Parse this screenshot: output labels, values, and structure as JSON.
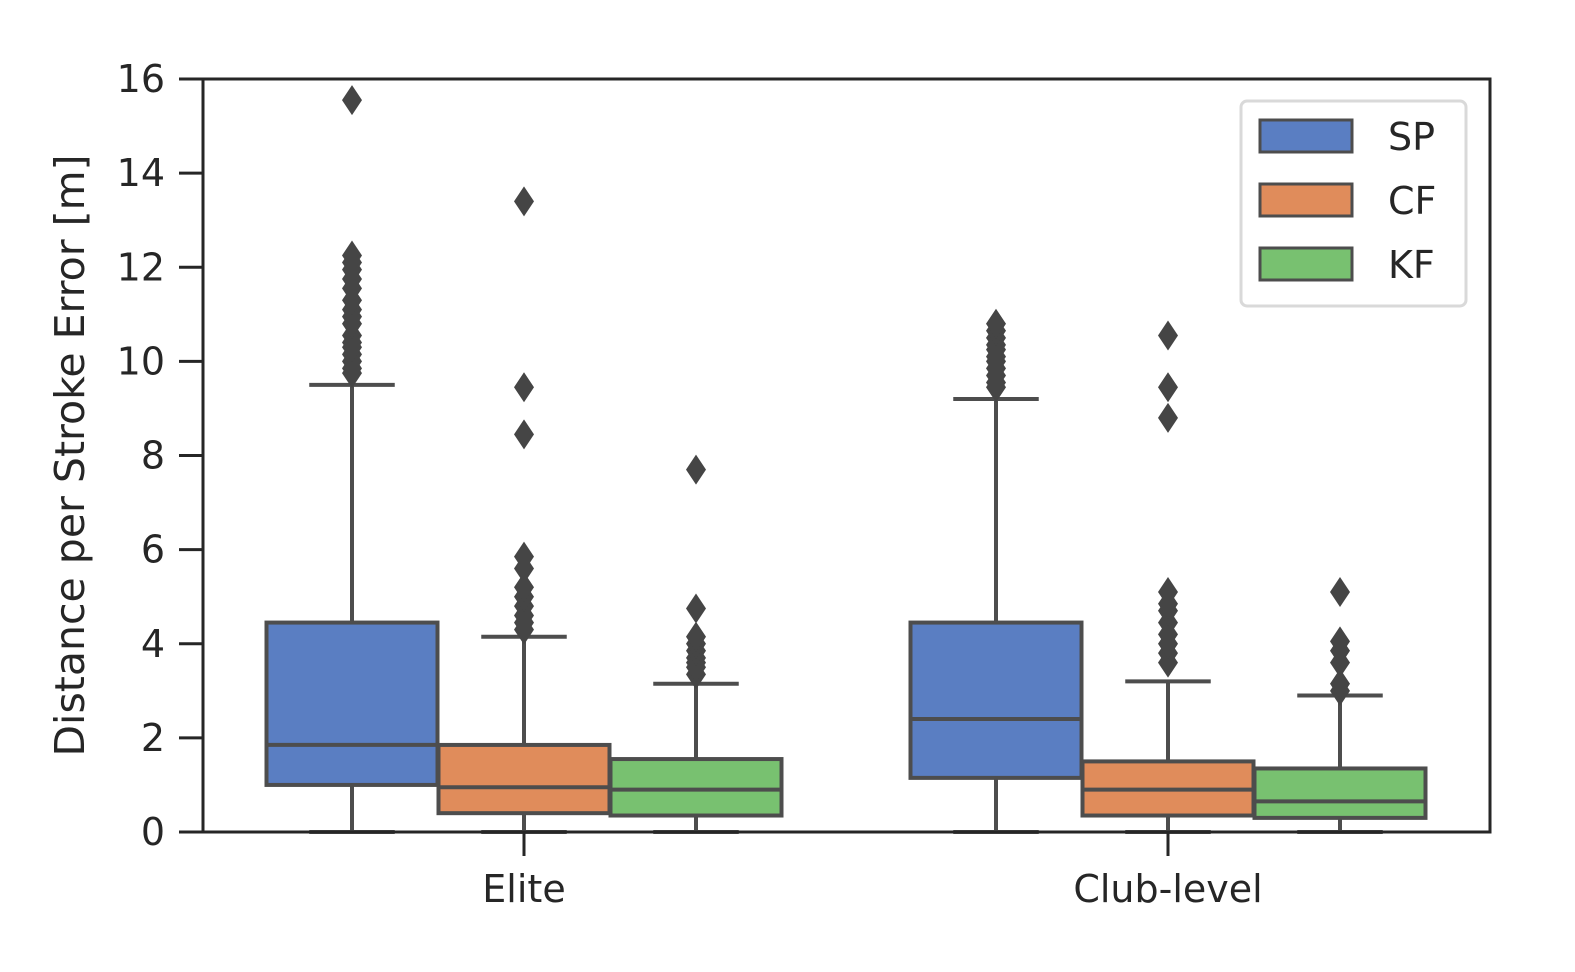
{
  "chart_data": {
    "type": "box",
    "title": "",
    "xlabel": "",
    "ylabel": "Distance per Stroke Error [m]",
    "ylim": [
      0,
      16
    ],
    "yticks": [
      "0",
      "2",
      "4",
      "6",
      "8",
      "10",
      "12",
      "14",
      "16"
    ],
    "categories": [
      "Elite",
      "Club-level"
    ],
    "grid": false,
    "legend_position": "top-right",
    "series": [
      {
        "name": "SP",
        "color": "#5a7ec2",
        "boxes": [
          {
            "whislo": 0.0,
            "q1": 1.0,
            "med": 1.85,
            "q3": 4.45,
            "whishi": 9.5,
            "fliers": [
              9.75,
              9.85,
              10.0,
              10.15,
              10.3,
              10.4,
              10.55,
              10.8,
              10.95,
              11.1,
              11.3,
              11.55,
              11.75,
              11.95,
              12.1,
              12.25,
              15.55
            ]
          },
          {
            "whislo": 0.0,
            "q1": 1.15,
            "med": 2.4,
            "q3": 4.45,
            "whishi": 9.2,
            "fliers": [
              9.45,
              9.55,
              9.7,
              9.85,
              10.0,
              10.1,
              10.25,
              10.35,
              10.5,
              10.65,
              10.8
            ]
          }
        ]
      },
      {
        "name": "CF",
        "color": "#e08c5b",
        "boxes": [
          {
            "whislo": 0.0,
            "q1": 0.4,
            "med": 0.95,
            "q3": 1.85,
            "whishi": 4.15,
            "fliers": [
              4.3,
              4.45,
              4.6,
              4.8,
              5.0,
              5.2,
              5.6,
              5.85,
              8.45,
              9.45,
              13.4
            ]
          },
          {
            "whislo": 0.0,
            "q1": 0.35,
            "med": 0.9,
            "q3": 1.5,
            "whishi": 3.2,
            "fliers": [
              3.6,
              3.8,
              4.0,
              4.2,
              4.45,
              4.7,
              4.85,
              5.1,
              8.8,
              9.45,
              10.55
            ]
          }
        ]
      },
      {
        "name": "KF",
        "color": "#78c170",
        "boxes": [
          {
            "whislo": 0.0,
            "q1": 0.35,
            "med": 0.9,
            "q3": 1.55,
            "whishi": 3.15,
            "fliers": [
              3.35,
              3.5,
              3.6,
              3.7,
              3.85,
              4.0,
              4.15,
              4.75,
              7.7
            ]
          },
          {
            "whislo": 0.0,
            "q1": 0.3,
            "med": 0.65,
            "q3": 1.35,
            "whishi": 2.9,
            "fliers": [
              3.0,
              3.15,
              3.6,
              3.85,
              4.05,
              5.1
            ]
          }
        ]
      }
    ]
  }
}
